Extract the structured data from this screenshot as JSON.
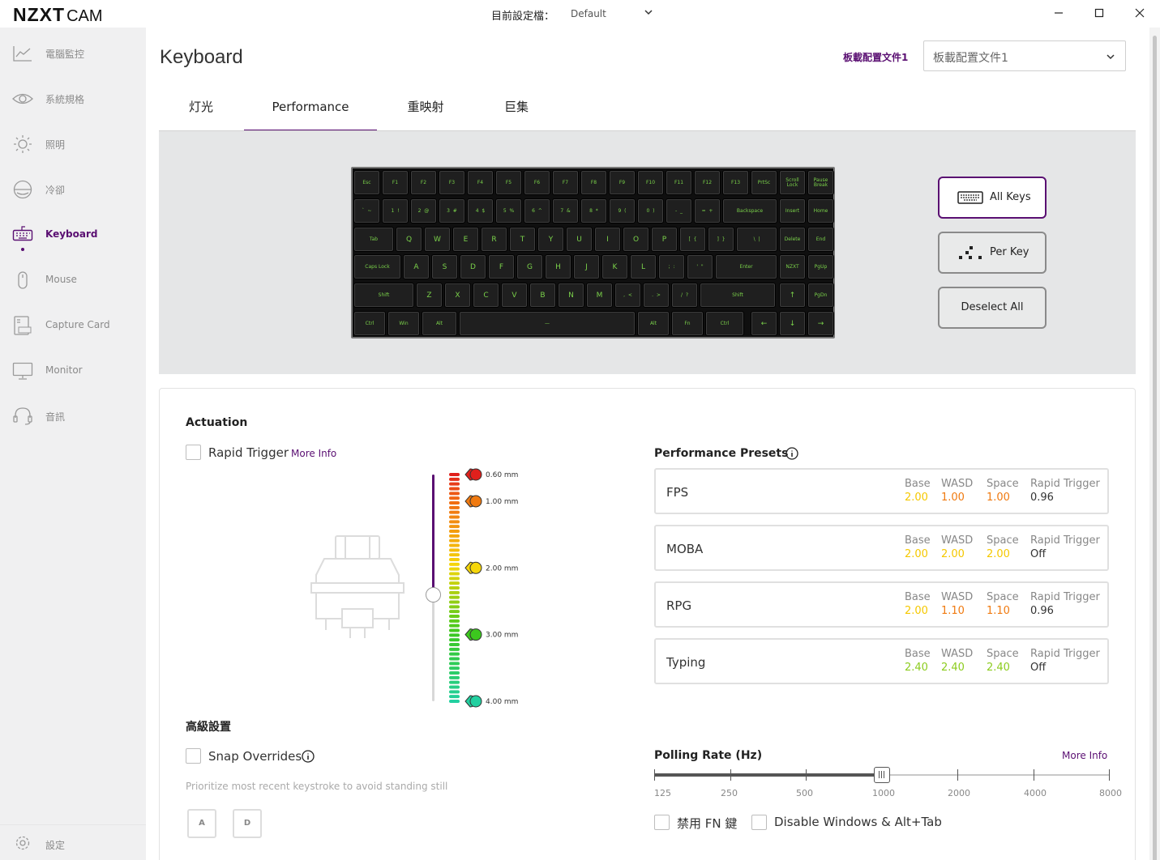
{
  "app": {
    "logo_main": "NZXT",
    "logo_sub": "CAM",
    "profile_label": "目前設定檔：",
    "profile_value": "Default"
  },
  "sidebar": {
    "items": [
      {
        "label": "電腦監控",
        "icon": "chart-line-icon"
      },
      {
        "label": "系統規格",
        "icon": "eye-icon"
      },
      {
        "label": "照明",
        "icon": "sun-icon"
      },
      {
        "label": "冷卻",
        "icon": "fan-icon"
      },
      {
        "label": "Keyboard",
        "icon": "keyboard-icon",
        "active": true
      },
      {
        "label": "Mouse",
        "icon": "mouse-icon"
      },
      {
        "label": "Capture Card",
        "icon": "capture-card-icon"
      },
      {
        "label": "Monitor",
        "icon": "monitor-icon"
      },
      {
        "label": "音訊",
        "icon": "headset-icon"
      }
    ],
    "settings_label": "設定"
  },
  "page": {
    "title": "Keyboard",
    "config_label": "板載配置文件1",
    "config_value": "板載配置文件1"
  },
  "tabs": [
    "灯光",
    "Performance",
    "重映射",
    "巨集"
  ],
  "keyboard": {
    "row0": [
      "Esc",
      "F1",
      "F2",
      "F3",
      "F4",
      "F5",
      "F6",
      "F7",
      "F8",
      "F9",
      "F10",
      "F11",
      "F12",
      "F13",
      "PrtSc",
      "Scroll\nLock",
      "Pause\nBreak"
    ],
    "row1": [
      "`  ~",
      "1  !",
      "2  @",
      "3  #",
      "4  $",
      "5  %",
      "6  ^",
      "7  &",
      "8  *",
      "9  (",
      "0  )",
      "-  _",
      "=  +",
      "Backspace",
      "Insert",
      "Home"
    ],
    "row2": [
      "Tab",
      "Q",
      "W",
      "E",
      "R",
      "T",
      "Y",
      "U",
      "I",
      "O",
      "P",
      "[  {",
      "]  }",
      "\\  |",
      "Delete",
      "End"
    ],
    "row3": [
      "Caps Lock",
      "A",
      "S",
      "D",
      "F",
      "G",
      "H",
      "J",
      "K",
      "L",
      ";  :",
      "'  \"",
      "Enter",
      "NZXT",
      "PgUp"
    ],
    "row4": [
      "Shift",
      "Z",
      "X",
      "C",
      "V",
      "B",
      "N",
      "M",
      ",  <",
      ".  >",
      "/  ?",
      "Shift",
      "↑",
      "PgDn"
    ],
    "row5": [
      "Ctrl",
      "Win",
      "Alt",
      "—",
      "Alt",
      "Fn",
      "Ctrl",
      "←",
      "↓",
      "→"
    ]
  },
  "side_buttons": {
    "all_keys": "All Keys",
    "per_key": "Per Key",
    "deselect_all": "Deselect All"
  },
  "actuation": {
    "title": "Actuation",
    "rapid_trigger_label": "Rapid Trigger",
    "more_info": "More Info",
    "markers": [
      {
        "label": "0.60 mm",
        "color": "#e0201c"
      },
      {
        "label": "1.00 mm",
        "color": "#f07a10"
      },
      {
        "label": "2.00 mm",
        "color": "#f5d60a"
      },
      {
        "label": "3.00 mm",
        "color": "#3cc81e"
      },
      {
        "label": "4.00 mm",
        "color": "#22d0a0"
      }
    ],
    "current_mm": 2.4
  },
  "presets": {
    "title": "Performance Presets",
    "headers": [
      "Base",
      "WASD",
      "Space",
      "Rapid Trigger"
    ],
    "rows": [
      {
        "name": "FPS",
        "base": "2.00",
        "wasd": "1.00",
        "space": "1.00",
        "rt": "0.96",
        "colors": [
          "#f5c800",
          "#f07a10",
          "#f07a10"
        ]
      },
      {
        "name": "MOBA",
        "base": "2.00",
        "wasd": "2.00",
        "space": "2.00",
        "rt": "Off",
        "colors": [
          "#f5c800",
          "#f5c800",
          "#f5c800"
        ]
      },
      {
        "name": "RPG",
        "base": "2.00",
        "wasd": "1.10",
        "space": "1.10",
        "rt": "0.96",
        "colors": [
          "#f5c800",
          "#f07a10",
          "#f07a10"
        ]
      },
      {
        "name": "Typing",
        "base": "2.40",
        "wasd": "2.40",
        "space": "2.40",
        "rt": "Off",
        "colors": [
          "#8ccc1e",
          "#8ccc1e",
          "#8ccc1e"
        ]
      }
    ]
  },
  "advanced": {
    "title": "高級設置",
    "snap_label": "Snap Overrides",
    "snap_desc": "Prioritize most recent keystroke to avoid standing still",
    "key_a": "A",
    "key_d": "D"
  },
  "polling": {
    "title": "Polling Rate (Hz)",
    "more_info": "More Info",
    "ticks": [
      "125",
      "250",
      "500",
      "1000",
      "2000",
      "4000",
      "8000"
    ],
    "selected": "1000"
  },
  "toggles": {
    "disable_fn": "禁用 FN 鍵",
    "disable_win": "Disable Windows & Alt+Tab"
  },
  "colors": {
    "accent": "#5a0f72",
    "key_legend": "#7ad14a"
  }
}
